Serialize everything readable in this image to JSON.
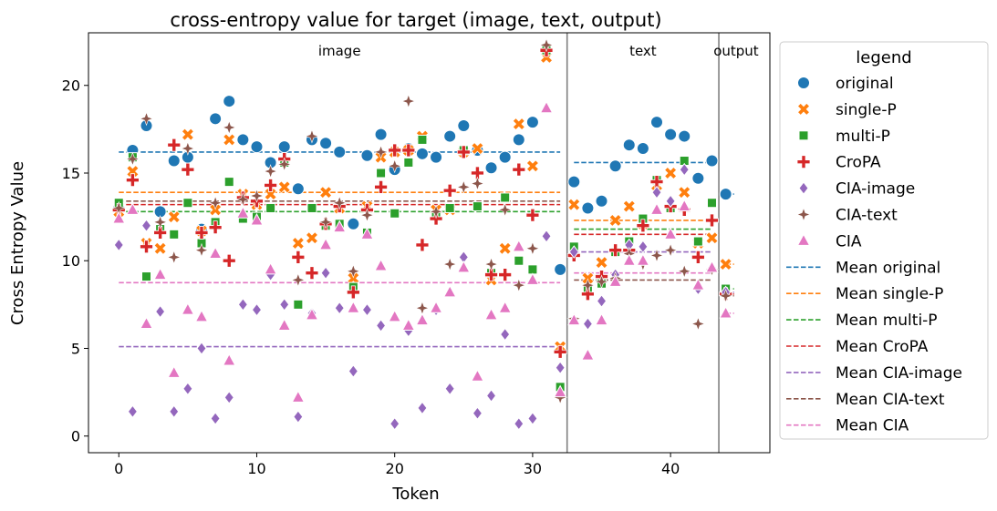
{
  "chart_data": {
    "type": "scatter",
    "title": "cross-entropy value for target (image, text, output)",
    "xlabel": "Token",
    "ylabel": "Cross Entropy Value",
    "xlim": [
      -2.2,
      47.2
    ],
    "ylim": [
      -0.95,
      23.0
    ],
    "x_ticks": [
      0,
      10,
      20,
      30,
      40
    ],
    "y_ticks": [
      0,
      5,
      10,
      15,
      20
    ],
    "grid": false,
    "legend_title": "legend",
    "legend_position": "right",
    "regions": [
      {
        "label": "image",
        "start": 0,
        "end": 32
      },
      {
        "label": "text",
        "start": 33,
        "end": 43
      },
      {
        "label": "output",
        "start": 44,
        "end": 44
      }
    ],
    "region_boundaries": [
      32.5,
      43.5
    ],
    "series": [
      {
        "name": "original",
        "marker": "circle",
        "color": "#1f77b4",
        "values": [
          13.0,
          16.3,
          17.7,
          12.8,
          15.7,
          15.9,
          11.8,
          18.1,
          19.1,
          16.9,
          16.5,
          15.6,
          16.5,
          14.1,
          16.9,
          16.7,
          16.2,
          12.1,
          16.0,
          17.2,
          15.2,
          16.4,
          16.1,
          15.9,
          17.1,
          17.7,
          16.3,
          15.3,
          15.9,
          16.9,
          17.9,
          22.0,
          9.5,
          14.5,
          13.0,
          13.4,
          15.4,
          16.6,
          16.4,
          17.9,
          17.2,
          17.1,
          14.7,
          15.7,
          13.8
        ],
        "mean_segments": [
          {
            "x0": 0,
            "x1": 32,
            "y": 16.2
          },
          {
            "x0": 33,
            "x1": 43,
            "y": 15.6
          },
          {
            "x0": 44,
            "x1": 44.6,
            "y": 13.8
          }
        ]
      },
      {
        "name": "single-P",
        "marker": "x",
        "color": "#ff7f0e",
        "values": [
          12.8,
          15.1,
          11.0,
          10.7,
          12.5,
          17.2,
          11.7,
          12.9,
          16.9,
          13.8,
          13.2,
          13.8,
          14.2,
          11.0,
          11.3,
          13.9,
          13.0,
          9.0,
          13.1,
          15.9,
          16.2,
          16.3,
          17.1,
          12.9,
          12.9,
          16.2,
          16.4,
          8.9,
          10.7,
          17.8,
          15.4,
          21.6,
          5.1,
          13.2,
          9.0,
          9.9,
          12.3,
          13.1,
          12.1,
          14.3,
          15.0,
          13.9,
          11.0,
          11.3,
          9.8
        ],
        "mean_segments": [
          {
            "x0": 0,
            "x1": 32,
            "y": 13.9
          },
          {
            "x0": 33,
            "x1": 43,
            "y": 12.3
          },
          {
            "x0": 44,
            "x1": 44.6,
            "y": 9.8
          }
        ]
      },
      {
        "name": "multi-P",
        "marker": "square",
        "color": "#2ca02c",
        "values": [
          13.3,
          15.9,
          9.1,
          11.8,
          11.5,
          13.3,
          11.0,
          12.2,
          14.5,
          12.4,
          12.5,
          13.0,
          15.6,
          7.5,
          13.0,
          12.0,
          12.1,
          8.5,
          11.6,
          15.0,
          12.7,
          15.6,
          16.9,
          12.6,
          13.0,
          16.3,
          13.1,
          9.3,
          13.6,
          10.0,
          9.5,
          22.0,
          2.8,
          10.8,
          8.3,
          8.7,
          10.5,
          11.1,
          12.4,
          14.6,
          13.0,
          15.7,
          11.1,
          13.3,
          8.4
        ],
        "mean_segments": [
          {
            "x0": 0,
            "x1": 32,
            "y": 12.8
          },
          {
            "x0": 33,
            "x1": 43,
            "y": 11.8
          },
          {
            "x0": 44,
            "x1": 44.6,
            "y": 8.4
          }
        ]
      },
      {
        "name": "CroPA",
        "marker": "plus",
        "color": "#d62728",
        "values": [
          12.9,
          14.6,
          10.8,
          11.6,
          16.6,
          15.2,
          11.6,
          11.9,
          10.0,
          13.6,
          13.4,
          14.3,
          15.8,
          10.2,
          9.3,
          12.1,
          13.1,
          8.2,
          12.9,
          14.2,
          16.3,
          16.3,
          10.9,
          12.4,
          14.0,
          16.2,
          15.0,
          9.2,
          9.2,
          15.2,
          12.6,
          22.0,
          4.8,
          10.3,
          8.1,
          9.1,
          10.6,
          10.6,
          12.0,
          14.5,
          13.1,
          12.9,
          10.2,
          12.3,
          8.1
        ],
        "mean_segments": [
          {
            "x0": 0,
            "x1": 32,
            "y": 13.2
          },
          {
            "x0": 33,
            "x1": 43,
            "y": 11.5
          },
          {
            "x0": 44,
            "x1": 44.6,
            "y": 8.1
          }
        ]
      },
      {
        "name": "CIA-image",
        "marker": "diamond",
        "color": "#9467bd",
        "values": [
          10.9,
          1.4,
          12.0,
          7.1,
          1.4,
          2.7,
          5.0,
          1.0,
          2.2,
          7.5,
          7.2,
          9.2,
          7.5,
          1.1,
          7.0,
          9.3,
          7.3,
          3.7,
          7.2,
          6.3,
          0.7,
          6.0,
          1.6,
          7.2,
          2.7,
          10.2,
          1.3,
          2.3,
          5.8,
          0.7,
          1.0,
          11.4,
          3.9,
          10.5,
          6.4,
          7.7,
          9.2,
          10.9,
          10.8,
          13.9,
          13.4,
          15.2,
          8.4,
          9.6,
          8.2
        ],
        "mean_segments": [
          {
            "x0": 0,
            "x1": 32,
            "y": 5.1
          },
          {
            "x0": 33,
            "x1": 43,
            "y": 10.5
          },
          {
            "x0": 44,
            "x1": 44.6,
            "y": 8.2
          }
        ]
      },
      {
        "name": "CIA-text",
        "marker": "star",
        "color": "#8c564b",
        "values": [
          13.0,
          15.8,
          18.1,
          12.2,
          10.2,
          16.4,
          10.6,
          13.3,
          17.6,
          13.5,
          13.7,
          15.1,
          15.5,
          8.9,
          17.1,
          12.2,
          13.3,
          9.4,
          12.6,
          16.2,
          15.4,
          19.1,
          7.3,
          12.8,
          9.8,
          14.2,
          14.4,
          9.8,
          12.9,
          8.6,
          10.7,
          22.3,
          2.2,
          6.7,
          8.6,
          8.8,
          9.0,
          10.4,
          9.8,
          10.3,
          10.6,
          9.4,
          6.4,
          9.5,
          8.0
        ],
        "mean_segments": [
          {
            "x0": 0,
            "x1": 32,
            "y": 13.4
          },
          {
            "x0": 33,
            "x1": 43,
            "y": 8.9
          },
          {
            "x0": 44,
            "x1": 44.6,
            "y": 8.0
          }
        ]
      },
      {
        "name": "CIA",
        "marker": "triangle",
        "color": "#e377c2",
        "values": [
          12.4,
          12.9,
          6.4,
          9.2,
          3.6,
          7.2,
          6.8,
          10.4,
          4.3,
          12.7,
          12.3,
          9.5,
          6.3,
          2.2,
          6.9,
          10.9,
          11.9,
          7.3,
          11.5,
          9.7,
          6.8,
          6.3,
          6.6,
          7.3,
          8.2,
          9.6,
          3.4,
          6.9,
          7.3,
          10.8,
          8.9,
          18.7,
          2.5,
          6.6,
          4.6,
          6.6,
          8.8,
          10.0,
          10.0,
          12.9,
          11.5,
          13.1,
          8.6,
          9.6,
          7.0
        ],
        "mean_segments": [
          {
            "x0": 0,
            "x1": 32,
            "y": 8.75
          },
          {
            "x0": 33,
            "x1": 43,
            "y": 9.3
          },
          {
            "x0": 44,
            "x1": 44.6,
            "y": 7.0
          }
        ]
      }
    ],
    "legend_entries": [
      "original",
      "single-P",
      "multi-P",
      "CroPA",
      "CIA-image",
      "CIA-text",
      "CIA",
      "Mean original",
      "Mean single-P",
      "Mean multi-P",
      "Mean CroPA",
      "Mean CIA-image",
      "Mean CIA-text",
      "Mean CIA"
    ]
  }
}
